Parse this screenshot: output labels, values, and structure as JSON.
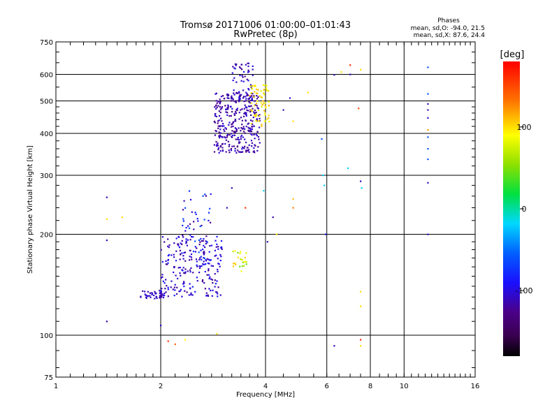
{
  "title_line1": "Tromsø 20171006 01:00:00–01:01:43",
  "title_line2": "RwPretec (8p)",
  "stats": {
    "heading": "Phases",
    "line1": "mean, sd,O: -94.0, 21.5",
    "line2": "mean, sd,X:  87.6, 24.4"
  },
  "colorbar": {
    "label": "[deg]",
    "ticks": [
      "100",
      "0",
      "-100"
    ],
    "tick_values": [
      100,
      0,
      -100
    ],
    "range": [
      -180,
      180
    ]
  },
  "chart_data": {
    "type": "scatter",
    "xlabel": "Frequency [MHz]",
    "ylabel": "Stationary phase Virtual Height [km]",
    "xscale": "log",
    "yscale": "log",
    "xlim": [
      1,
      16
    ],
    "ylim": [
      75,
      750
    ],
    "x_ticks": [
      "1",
      "2",
      "4",
      "6",
      "8",
      "10",
      "16"
    ],
    "x_tick_values": [
      1,
      2,
      4,
      6,
      8,
      10,
      16
    ],
    "y_ticks": [
      "750",
      "600",
      "500",
      "400",
      "300",
      "200",
      "100",
      "75"
    ],
    "y_tick_values": [
      750,
      600,
      500,
      400,
      300,
      200,
      100,
      75
    ],
    "grid": true,
    "clusters": [
      {
        "fmin": 1.75,
        "fmax": 2.05,
        "hmin": 128,
        "hmax": 136,
        "phase": -110,
        "phase_sd": 6,
        "count": 45
      },
      {
        "fmin": 2.0,
        "fmax": 3.0,
        "hmin": 130,
        "hmax": 200,
        "phase": -105,
        "phase_sd": 15,
        "count": 220
      },
      {
        "fmin": 2.3,
        "fmax": 2.8,
        "hmin": 150,
        "hmax": 270,
        "phase": -95,
        "phase_sd": 25,
        "count": 60
      },
      {
        "fmin": 3.2,
        "fmax": 3.55,
        "hmin": 155,
        "hmax": 180,
        "phase": 80,
        "phase_sd": 25,
        "count": 25
      },
      {
        "fmin": 2.85,
        "fmax": 3.85,
        "hmin": 350,
        "hmax": 530,
        "phase": -115,
        "phase_sd": 10,
        "count": 350
      },
      {
        "fmin": 3.2,
        "fmax": 3.7,
        "hmin": 500,
        "hmax": 650,
        "phase": -110,
        "phase_sd": 10,
        "count": 60
      },
      {
        "fmin": 3.6,
        "fmax": 4.1,
        "hmin": 420,
        "hmax": 560,
        "phase": 95,
        "phase_sd": 12,
        "count": 70
      }
    ],
    "points": [
      {
        "x": 1.4,
        "y": 258,
        "phase": -115
      },
      {
        "x": 1.4,
        "y": 222,
        "phase": 100
      },
      {
        "x": 1.4,
        "y": 192,
        "phase": -110
      },
      {
        "x": 1.4,
        "y": 110,
        "phase": -110
      },
      {
        "x": 1.55,
        "y": 225,
        "phase": 100
      },
      {
        "x": 2.0,
        "y": 107,
        "phase": -110
      },
      {
        "x": 2.1,
        "y": 96,
        "phase": 160
      },
      {
        "x": 2.2,
        "y": 94,
        "phase": 140
      },
      {
        "x": 2.35,
        "y": 97,
        "phase": 90
      },
      {
        "x": 2.9,
        "y": 101,
        "phase": 100
      },
      {
        "x": 3.2,
        "y": 275,
        "phase": -110
      },
      {
        "x": 3.1,
        "y": 240,
        "phase": -110
      },
      {
        "x": 3.5,
        "y": 240,
        "phase": 160
      },
      {
        "x": 3.95,
        "y": 270,
        "phase": -20
      },
      {
        "x": 4.05,
        "y": 190,
        "phase": -110
      },
      {
        "x": 4.2,
        "y": 225,
        "phase": -110
      },
      {
        "x": 4.3,
        "y": 200,
        "phase": 100
      },
      {
        "x": 4.5,
        "y": 470,
        "phase": -110
      },
      {
        "x": 4.7,
        "y": 510,
        "phase": -110
      },
      {
        "x": 4.8,
        "y": 255,
        "phase": 110
      },
      {
        "x": 4.8,
        "y": 240,
        "phase": 130
      },
      {
        "x": 4.8,
        "y": 435,
        "phase": 100
      },
      {
        "x": 5.3,
        "y": 530,
        "phase": 100
      },
      {
        "x": 5.8,
        "y": 385,
        "phase": -60
      },
      {
        "x": 5.85,
        "y": 300,
        "phase": -20
      },
      {
        "x": 5.9,
        "y": 280,
        "phase": -20
      },
      {
        "x": 5.95,
        "y": 200,
        "phase": -90
      },
      {
        "x": 6.3,
        "y": 93,
        "phase": -110
      },
      {
        "x": 6.3,
        "y": 598,
        "phase": -110
      },
      {
        "x": 6.6,
        "y": 610,
        "phase": 100
      },
      {
        "x": 6.9,
        "y": 315,
        "phase": -20
      },
      {
        "x": 7.0,
        "y": 640,
        "phase": 160
      },
      {
        "x": 7.0,
        "y": 600,
        "phase": -110
      },
      {
        "x": 7.5,
        "y": 288,
        "phase": -110
      },
      {
        "x": 7.55,
        "y": 275,
        "phase": -20
      },
      {
        "x": 7.4,
        "y": 475,
        "phase": 150
      },
      {
        "x": 7.5,
        "y": 620,
        "phase": 100
      },
      {
        "x": 7.5,
        "y": 135,
        "phase": 100
      },
      {
        "x": 7.5,
        "y": 122,
        "phase": 100
      },
      {
        "x": 7.5,
        "y": 97,
        "phase": 160
      },
      {
        "x": 7.5,
        "y": 93,
        "phase": 100
      },
      {
        "x": 11.7,
        "y": 630,
        "phase": -60
      },
      {
        "x": 11.7,
        "y": 525,
        "phase": -60
      },
      {
        "x": 11.7,
        "y": 490,
        "phase": -110
      },
      {
        "x": 11.7,
        "y": 470,
        "phase": -110
      },
      {
        "x": 11.7,
        "y": 445,
        "phase": -110
      },
      {
        "x": 11.7,
        "y": 410,
        "phase": 120
      },
      {
        "x": 11.7,
        "y": 390,
        "phase": -60
      },
      {
        "x": 11.7,
        "y": 360,
        "phase": -60
      },
      {
        "x": 11.7,
        "y": 335,
        "phase": -60
      },
      {
        "x": 11.7,
        "y": 285,
        "phase": -110
      },
      {
        "x": 11.7,
        "y": 200,
        "phase": -110
      }
    ]
  }
}
